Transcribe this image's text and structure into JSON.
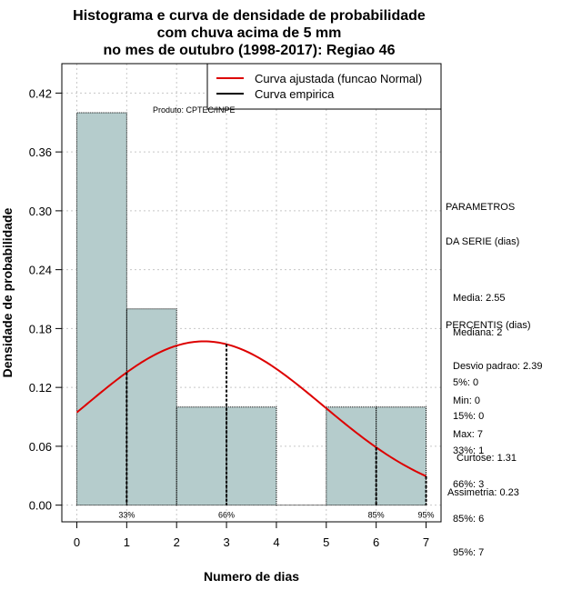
{
  "chart_data": {
    "type": "bar",
    "title_lines": [
      "Histograma e curva de densidade de probabilidade",
      "com chuva acima de 5 mm",
      "no mes de outubro (1998-2017): Regiao 46"
    ],
    "xlabel": "Numero de dias",
    "ylabel": "Densidade de probabilidade",
    "xlim": [
      -0.3,
      7.3
    ],
    "ylim": [
      -0.017,
      0.45
    ],
    "x_ticks": [
      0,
      1,
      2,
      3,
      4,
      5,
      6,
      7
    ],
    "y_ticks": [
      0.0,
      0.06,
      0.12,
      0.18,
      0.24,
      0.3,
      0.36,
      0.42
    ],
    "y_tick_labels": [
      "0.00",
      "0.06",
      "0.12",
      "0.18",
      "0.24",
      "0.30",
      "0.36",
      "0.42"
    ],
    "grid": true,
    "bins": [
      {
        "from": 0,
        "to": 1,
        "density": 0.4
      },
      {
        "from": 1,
        "to": 2,
        "density": 0.2
      },
      {
        "from": 2,
        "to": 3,
        "density": 0.1
      },
      {
        "from": 3,
        "to": 4,
        "density": 0.1
      },
      {
        "from": 4,
        "to": 5,
        "density": 0.0
      },
      {
        "from": 5,
        "to": 6,
        "density": 0.1
      },
      {
        "from": 6,
        "to": 7,
        "density": 0.1
      }
    ],
    "bar_color": "#b5cccc",
    "curve": {
      "name": "Curva ajustada (funcao Normal)",
      "distribution": "normal",
      "mean": 2.55,
      "sd": 2.39,
      "x_range": [
        0,
        7
      ],
      "color": "#dd0000"
    },
    "empirical_label": "Curva empirica",
    "percentile_marks": [
      {
        "x": 1,
        "label": "33%"
      },
      {
        "x": 3,
        "label": "66%"
      },
      {
        "x": 6,
        "label": "85%"
      },
      {
        "x": 7,
        "label": "95%"
      }
    ],
    "legend_position": "top-right",
    "product_label": "Produto: CPTEC/INPE"
  },
  "parametros": {
    "title_lines": [
      "PARAMETROS",
      "DA SERIE (dias)"
    ],
    "lines": [
      "Media: 2.55",
      "Mediana: 2",
      "Desvio padrao: 2.39",
      "Min: 0",
      "Max: 7"
    ]
  },
  "percentis": {
    "title": "PERCENTIS (dias)",
    "lines": [
      "5%: 0",
      "15%: 0",
      "33%: 1",
      "66%: 3",
      "85%: 6",
      "95%: 7"
    ]
  },
  "stats": {
    "curtose": "Curtose: 1.31",
    "assimetria": "Assimetria: 0.23"
  }
}
